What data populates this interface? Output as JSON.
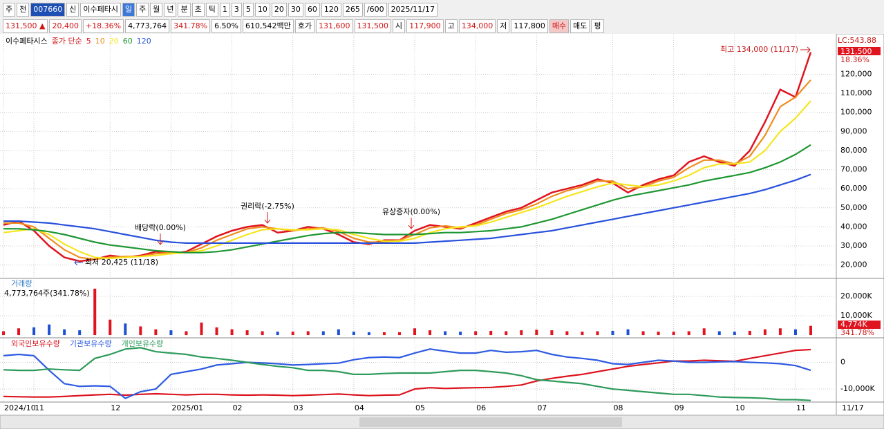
{
  "toolbar": {
    "row1": [
      "주",
      "전",
      "007660",
      "신",
      "이수페타시",
      "일",
      "주",
      "월",
      "년",
      "분",
      "초",
      "틱",
      "1",
      "3",
      "5",
      "10",
      "20",
      "30",
      "60",
      "120",
      "265",
      "/600",
      "2025/11/17"
    ],
    "row2": [
      "131,500 ▲",
      "20,400",
      "+18.36%",
      "4,773,764",
      "341.78%",
      "6.50%",
      "610,542백만",
      "호가",
      "131,600",
      "131,500",
      "시",
      "117,900",
      "고",
      "134,000",
      "저",
      "117,800",
      "매수",
      "매도",
      "평"
    ]
  },
  "chart_data": [
    {
      "type": "line",
      "stock_name": "이수페타시스",
      "legend_prefix": "종가 단순",
      "right_labels": [
        "LC:543.88",
        "131,500",
        "18.36%"
      ],
      "annotations": [
        "배당락(0.00%)",
        "권리락(-2.75%)",
        "유상증자(0.00%)",
        "최고 134,000 (11/17)",
        "최저 20,425 (11/18)"
      ],
      "categories": [
        "2024/10",
        null,
        "11",
        null,
        null,
        null,
        null,
        "12",
        null,
        null,
        null,
        "2025/01",
        null,
        null,
        null,
        "02",
        null,
        null,
        null,
        "03",
        null,
        null,
        null,
        "04",
        null,
        null,
        null,
        "05",
        null,
        null,
        null,
        "06",
        null,
        null,
        null,
        "07",
        null,
        null,
        null,
        null,
        "08",
        null,
        null,
        null,
        "09",
        null,
        null,
        null,
        "10",
        null,
        null,
        null,
        "11",
        "11/17"
      ],
      "ylim": [
        13000,
        139000
      ],
      "yticks": [
        {
          "value": 20000,
          "label": "20,000"
        },
        {
          "value": 30000,
          "label": "30,000"
        },
        {
          "value": 40000,
          "label": "40,000"
        },
        {
          "value": 50000,
          "label": "50,000"
        },
        {
          "value": 60000,
          "label": "60,000"
        },
        {
          "value": 70000,
          "label": "70,000"
        },
        {
          "value": 80000,
          "label": "80,000"
        },
        {
          "value": 90000,
          "label": "90,000"
        },
        {
          "value": 100000,
          "label": "100,000"
        },
        {
          "value": 110000,
          "label": "110,000"
        },
        {
          "value": 120000,
          "label": "120,000"
        }
      ],
      "grid": true,
      "series": [
        {
          "name": "5",
          "color": "#e0141e",
          "values": [
            41000,
            43000,
            38000,
            30000,
            24000,
            22000,
            23000,
            25000,
            24000,
            25000,
            27000,
            26000,
            27000,
            31000,
            35000,
            38000,
            40000,
            41000,
            37000,
            38000,
            40000,
            39000,
            36000,
            32000,
            31000,
            33000,
            33000,
            38000,
            41000,
            40000,
            39000,
            42000,
            45000,
            48000,
            50000,
            54000,
            58000,
            60000,
            62000,
            65000,
            63000,
            58000,
            62000,
            65000,
            67000,
            74000,
            77000,
            74000,
            72000,
            80000,
            95000,
            112000,
            108000,
            131500
          ]
        },
        {
          "name": "10",
          "color": "#f08c1e",
          "values": [
            42000,
            42000,
            40000,
            34000,
            28000,
            24000,
            23000,
            24000,
            24500,
            24500,
            26000,
            26500,
            26500,
            29000,
            33000,
            36000,
            39000,
            40000,
            39000,
            38000,
            39000,
            39500,
            37500,
            34000,
            32000,
            32000,
            33000,
            36000,
            39500,
            40500,
            39500,
            41000,
            44000,
            47000,
            49000,
            52000,
            56000,
            59000,
            61000,
            64000,
            64000,
            60000,
            61000,
            64000,
            66000,
            71000,
            75000,
            75000,
            73000,
            77000,
            88000,
            103000,
            108000,
            117000
          ]
        },
        {
          "name": "20",
          "color": "#f5e61e",
          "values": [
            37000,
            38000,
            39000,
            36000,
            31000,
            27000,
            24000,
            23500,
            24000,
            24500,
            25000,
            26000,
            26500,
            27500,
            30000,
            33000,
            36000,
            38500,
            39000,
            38500,
            38500,
            39000,
            38500,
            36000,
            34000,
            32500,
            32500,
            34000,
            37000,
            39000,
            40000,
            40500,
            42500,
            45000,
            47500,
            50000,
            53000,
            56000,
            58500,
            61000,
            63000,
            62000,
            61000,
            62000,
            64000,
            67000,
            71000,
            73000,
            73000,
            74000,
            80000,
            90000,
            97000,
            106000
          ]
        },
        {
          "name": "60",
          "color": "#1e9632",
          "values": [
            39000,
            39000,
            38500,
            37500,
            36000,
            34000,
            32000,
            30500,
            29500,
            28500,
            27500,
            27000,
            26500,
            26500,
            27000,
            28000,
            29500,
            31000,
            32500,
            34000,
            35500,
            36500,
            37000,
            37000,
            36500,
            36000,
            36000,
            36000,
            36500,
            37000,
            37000,
            37500,
            38000,
            39000,
            40000,
            42000,
            44000,
            46500,
            49000,
            51500,
            54000,
            56000,
            57500,
            59000,
            60500,
            62000,
            64000,
            65500,
            67000,
            68500,
            71000,
            74000,
            78000,
            83000
          ]
        },
        {
          "name": "120",
          "color": "#2850dc",
          "values": [
            43000,
            43000,
            42500,
            42000,
            41000,
            40000,
            39000,
            37500,
            36000,
            34500,
            33000,
            32000,
            31500,
            31500,
            31500,
            31500,
            31500,
            31500,
            31500,
            31500,
            31500,
            31500,
            31500,
            31500,
            31500,
            31500,
            31500,
            31500,
            32000,
            32500,
            33000,
            33500,
            34000,
            35000,
            36000,
            37000,
            38000,
            39500,
            41000,
            42500,
            44000,
            45500,
            47000,
            48500,
            50000,
            51500,
            53000,
            54500,
            56000,
            57500,
            59500,
            62000,
            64500,
            67500
          ]
        }
      ]
    },
    {
      "type": "bar",
      "title": "거래량",
      "info": "4,773,764주(341.78%)",
      "right_labels": [
        "4,774K",
        "341.78%"
      ],
      "ylim": [
        -1400,
        28600
      ],
      "yticks": [
        {
          "value": 10000,
          "label": "10,000K"
        },
        {
          "value": 20000,
          "label": "20,000K"
        }
      ],
      "values": [
        2000,
        3500,
        4000,
        5500,
        3000,
        2500,
        24000,
        8000,
        6000,
        4500,
        3000,
        2500,
        2000,
        6500,
        4000,
        3000,
        2500,
        2000,
        1800,
        1800,
        2000,
        2000,
        3000,
        1800,
        1500,
        1500,
        1500,
        3500,
        2500,
        2000,
        1800,
        2000,
        2200,
        2000,
        2500,
        2800,
        2500,
        2000,
        1800,
        2000,
        2200,
        3000,
        2000,
        1800,
        1800,
        2000,
        3500,
        2000,
        1800,
        2200,
        3000,
        3500,
        3000,
        4774
      ],
      "colors": [
        "#e0141e",
        "#1e50d2"
      ]
    },
    {
      "type": "line",
      "ylim": [
        -14900,
        8700
      ],
      "yticks": [
        0,
        {
          "value": -10000,
          "label": "-10,000K"
        }
      ],
      "series": [
        {
          "name": "외국인보유수량",
          "color": "#dc141e",
          "values": [
            -12800,
            -12900,
            -13000,
            -13000,
            -12800,
            -12500,
            -12200,
            -12000,
            -12300,
            -12000,
            -11800,
            -12000,
            -12200,
            -12000,
            -12000,
            -12200,
            -12300,
            -12200,
            -12300,
            -12500,
            -12300,
            -12100,
            -11900,
            -12200,
            -12500,
            -12300,
            -12200,
            -10000,
            -9500,
            -9800,
            -9600,
            -9500,
            -9400,
            -9000,
            -8500,
            -7000,
            -6000,
            -5200,
            -4500,
            -3500,
            -2500,
            -1500,
            -800,
            -200,
            500,
            500,
            800,
            600,
            400,
            1500,
            2500,
            3500,
            4500,
            4800
          ]
        },
        {
          "name": "기관보유수량",
          "color": "#2d5ae1",
          "values": [
            2500,
            3000,
            2500,
            -3000,
            -8000,
            -9000,
            -8800,
            -9000,
            -13500,
            -11000,
            -10000,
            -4500,
            -3500,
            -2500,
            -1000,
            -500,
            0,
            -200,
            -500,
            -1000,
            -800,
            -500,
            -300,
            1000,
            1800,
            2000,
            1800,
            3500,
            5000,
            4200,
            3500,
            3500,
            4500,
            3800,
            4000,
            4500,
            3000,
            2000,
            1500,
            800,
            -500,
            -800,
            0,
            800,
            500,
            0,
            0,
            200,
            300,
            0,
            -200,
            -500,
            -1200,
            -3000
          ]
        },
        {
          "name": "개인보유수량",
          "color": "#2d9a5a",
          "values": [
            -2800,
            -3000,
            -3000,
            -2500,
            -2800,
            -3000,
            1500,
            3000,
            5000,
            5500,
            4000,
            3500,
            3000,
            2000,
            1500,
            800,
            0,
            -800,
            -1500,
            -2000,
            -3000,
            -3000,
            -3500,
            -4500,
            -4500,
            -4200,
            -4000,
            -4000,
            -4000,
            -3500,
            -3000,
            -3000,
            -3500,
            -4000,
            -5000,
            -6500,
            -7000,
            -7500,
            -8000,
            -9000,
            -10000,
            -10500,
            -11000,
            -11500,
            -12000,
            -12000,
            -12500,
            -13000,
            -13200,
            -13300,
            -13500,
            -14000,
            -14000,
            -14300
          ]
        }
      ]
    }
  ]
}
